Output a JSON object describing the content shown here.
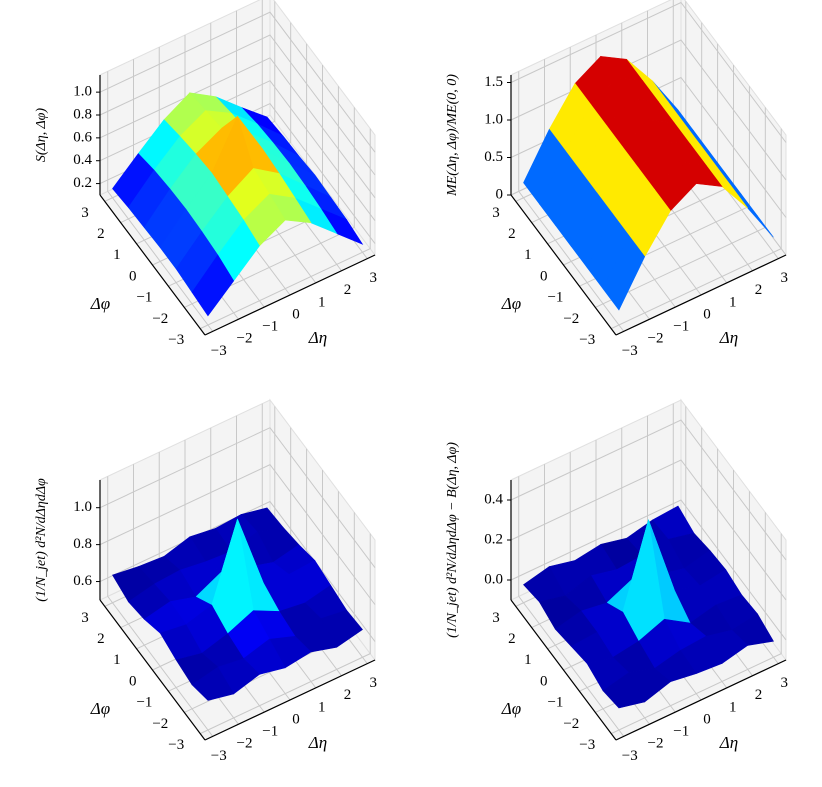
{
  "chart_data": [
    {
      "type": "surface3d",
      "colormap": "jet",
      "xlabel": "Δη",
      "ylabel": "Δφ",
      "zlabel": "S(Δη, Δφ)",
      "x": [
        -3,
        -2,
        -1,
        0,
        1,
        2,
        3
      ],
      "y": [
        -3,
        -2,
        -1,
        0,
        1,
        2,
        3
      ],
      "z": [
        [
          0.18,
          0.38,
          0.58,
          0.7,
          0.57,
          0.37,
          0.17
        ],
        [
          0.2,
          0.42,
          0.62,
          0.74,
          0.6,
          0.4,
          0.2
        ],
        [
          0.22,
          0.44,
          0.64,
          0.78,
          0.63,
          0.42,
          0.21
        ],
        [
          0.22,
          0.45,
          0.66,
          1.05,
          0.65,
          0.43,
          0.22
        ],
        [
          0.21,
          0.44,
          0.64,
          0.76,
          0.62,
          0.42,
          0.2
        ],
        [
          0.2,
          0.42,
          0.61,
          0.73,
          0.6,
          0.4,
          0.19
        ],
        [
          0.18,
          0.38,
          0.57,
          0.7,
          0.56,
          0.36,
          0.17
        ]
      ],
      "xlim": [
        -3.3,
        3.3
      ],
      "ylim": [
        -3.3,
        3.3
      ],
      "zlim": [
        0.1,
        1.15
      ],
      "xticks": [
        {
          "value": -3,
          "label": "−3"
        },
        {
          "value": -2,
          "label": "−2"
        },
        {
          "value": -1,
          "label": "−1"
        },
        0,
        1,
        2,
        3
      ],
      "yticks": [
        {
          "value": -3,
          "label": "−3"
        },
        {
          "value": -2,
          "label": "−2"
        },
        {
          "value": -1,
          "label": "−1"
        },
        0,
        1,
        2,
        3
      ],
      "zticks": [
        0.2,
        0.4,
        0.6,
        0.8,
        {
          "value": 1,
          "label": "1.0"
        }
      ]
    },
    {
      "type": "surface3d",
      "colormap": "jet",
      "xlabel": "Δη",
      "ylabel": "Δφ",
      "zlabel": "ME(Δη, Δφ)/ME(0, 0)",
      "x": [
        -3,
        -2,
        -1,
        0,
        1,
        2,
        3
      ],
      "y": [
        -3,
        -2,
        -1,
        0,
        1,
        2,
        3
      ],
      "z": [
        [
          0.2,
          0.75,
          1.2,
          1.4,
          1.2,
          0.75,
          0.2
        ],
        [
          0.2,
          0.75,
          1.2,
          1.4,
          1.2,
          0.75,
          0.2
        ],
        [
          0.2,
          0.75,
          1.2,
          1.4,
          1.2,
          0.75,
          0.2
        ],
        [
          0.2,
          0.75,
          1.2,
          1.4,
          1.2,
          0.75,
          0.2
        ],
        [
          0.2,
          0.75,
          1.2,
          1.4,
          1.2,
          0.75,
          0.2
        ],
        [
          0.2,
          0.75,
          1.2,
          1.4,
          1.2,
          0.75,
          0.2
        ],
        [
          0.2,
          0.75,
          1.2,
          1.4,
          1.2,
          0.75,
          0.2
        ]
      ],
      "xlim": [
        -3.3,
        3.3
      ],
      "ylim": [
        -3.3,
        3.3
      ],
      "zlim": [
        0,
        1.6
      ],
      "xticks": [
        {
          "value": -3,
          "label": "−3"
        },
        {
          "value": -2,
          "label": "−2"
        },
        {
          "value": -1,
          "label": "−1"
        },
        0,
        1,
        2,
        3
      ],
      "yticks": [
        {
          "value": -3,
          "label": "−3"
        },
        {
          "value": -2,
          "label": "−2"
        },
        {
          "value": -1,
          "label": "−1"
        },
        0,
        1,
        2,
        3
      ],
      "zticks": [
        0,
        0.5,
        {
          "value": 1,
          "label": "1.0"
        },
        1.5
      ]
    },
    {
      "type": "surface3d",
      "colormap": "jet",
      "xlabel": "Δη",
      "ylabel": "Δφ",
      "zlabel": "(1/N_jet) d²N/dΔηdΔφ",
      "x": [
        -3,
        -2,
        -1,
        0,
        1,
        2,
        3
      ],
      "y": [
        -3,
        -2,
        -1,
        0,
        1,
        2,
        3
      ],
      "z": [
        [
          0.66,
          0.63,
          0.67,
          0.64,
          0.66,
          0.62,
          0.65
        ],
        [
          0.63,
          0.66,
          0.64,
          0.68,
          0.63,
          0.66,
          0.64
        ],
        [
          0.65,
          0.62,
          0.66,
          0.72,
          0.65,
          0.63,
          0.66
        ],
        [
          0.68,
          0.66,
          0.7,
          1.1,
          0.69,
          0.67,
          0.68
        ],
        [
          0.64,
          0.67,
          0.63,
          0.7,
          0.66,
          0.62,
          0.65
        ],
        [
          0.62,
          0.65,
          0.66,
          0.64,
          0.63,
          0.67,
          0.63
        ],
        [
          0.65,
          0.63,
          0.62,
          0.66,
          0.64,
          0.65,
          0.62
        ]
      ],
      "xlim": [
        -3.3,
        3.3
      ],
      "ylim": [
        -3.3,
        3.3
      ],
      "zlim": [
        0.5,
        1.15
      ],
      "xticks": [
        {
          "value": -3,
          "label": "−3"
        },
        {
          "value": -2,
          "label": "−2"
        },
        {
          "value": -1,
          "label": "−1"
        },
        0,
        1,
        2,
        3
      ],
      "yticks": [
        {
          "value": -3,
          "label": "−3"
        },
        {
          "value": -2,
          "label": "−2"
        },
        {
          "value": -1,
          "label": "−1"
        },
        0,
        1,
        2,
        3
      ],
      "zticks": [
        0.6,
        0.8,
        {
          "value": 1,
          "label": "1.0"
        }
      ]
    },
    {
      "type": "surface3d",
      "colormap": "jet",
      "xlabel": "Δη",
      "ylabel": "Δφ",
      "zlabel": "(1/N_jet) d²N/dΔηdΔφ − B(Δη, Δφ)",
      "x": [
        -3,
        -2,
        -1,
        0,
        1,
        2,
        3
      ],
      "y": [
        -3,
        -2,
        -1,
        0,
        1,
        2,
        3
      ],
      "z": [
        [
          0.01,
          -0.02,
          0.02,
          0,
          -0.01,
          0.02,
          -0.02
        ],
        [
          -0.01,
          0.02,
          -0.02,
          0.01,
          0.02,
          -0.01,
          0.01
        ],
        [
          0.02,
          -0.01,
          0.01,
          0.06,
          -0.02,
          0.01,
          0
        ],
        [
          0,
          0.01,
          0.05,
          0.45,
          0.04,
          0,
          0.02
        ],
        [
          -0.02,
          0.01,
          -0.01,
          0.05,
          0.01,
          -0.02,
          0.01
        ],
        [
          0.01,
          -0.02,
          0.02,
          -0.01,
          0,
          0.02,
          -0.01
        ],
        [
          -0.01,
          0.02,
          -0.01,
          0.01,
          -0.02,
          0.01,
          0.02
        ]
      ],
      "xlim": [
        -3.3,
        3.3
      ],
      "ylim": [
        -3.3,
        3.3
      ],
      "zlim": [
        -0.1,
        0.5
      ],
      "xticks": [
        {
          "value": -3,
          "label": "−3"
        },
        {
          "value": -2,
          "label": "−2"
        },
        {
          "value": -1,
          "label": "−1"
        },
        0,
        1,
        2,
        3
      ],
      "yticks": [
        {
          "value": -3,
          "label": "−3"
        },
        {
          "value": -2,
          "label": "−2"
        },
        {
          "value": -1,
          "label": "−1"
        },
        0,
        1,
        2,
        3
      ],
      "zticks": [
        {
          "value": 0,
          "label": "0.0"
        },
        0.2,
        0.4
      ]
    }
  ]
}
